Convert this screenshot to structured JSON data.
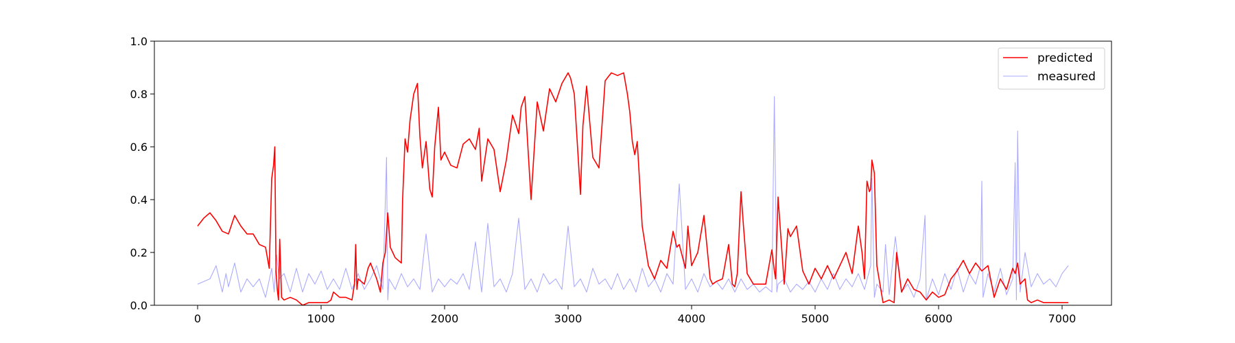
{
  "chart_data": {
    "type": "line",
    "title": "",
    "xlabel": "",
    "ylabel": "",
    "xlim": [
      -350,
      7400
    ],
    "ylim": [
      0.0,
      1.0
    ],
    "x_ticks": [
      0,
      1000,
      2000,
      3000,
      4000,
      5000,
      6000,
      7000
    ],
    "y_ticks": [
      0.0,
      0.2,
      0.4,
      0.6,
      0.8,
      1.0
    ],
    "x_tick_labels": [
      "0",
      "1000",
      "2000",
      "3000",
      "4000",
      "5000",
      "6000",
      "7000"
    ],
    "y_tick_labels": [
      "0.0",
      "0.2",
      "0.4",
      "0.6",
      "0.8",
      "1.0"
    ],
    "grid": false,
    "legend_position": "top-right",
    "series": [
      {
        "name": "predicted",
        "color": "#ff0000",
        "x": [
          0,
          50,
          100,
          150,
          200,
          250,
          300,
          350,
          400,
          450,
          500,
          550,
          580,
          600,
          615,
          625,
          635,
          645,
          655,
          665,
          680,
          700,
          750,
          800,
          850,
          900,
          950,
          1000,
          1050,
          1080,
          1100,
          1150,
          1200,
          1250,
          1270,
          1280,
          1290,
          1300,
          1350,
          1380,
          1400,
          1450,
          1480,
          1500,
          1520,
          1540,
          1560,
          1580,
          1600,
          1650,
          1660,
          1680,
          1700,
          1720,
          1750,
          1780,
          1800,
          1820,
          1850,
          1880,
          1900,
          1920,
          1950,
          1970,
          2000,
          2050,
          2100,
          2150,
          2200,
          2250,
          2280,
          2300,
          2350,
          2400,
          2450,
          2500,
          2550,
          2580,
          2600,
          2620,
          2650,
          2700,
          2750,
          2800,
          2850,
          2900,
          2950,
          3000,
          3020,
          3050,
          3100,
          3120,
          3150,
          3200,
          3250,
          3300,
          3350,
          3400,
          3450,
          3480,
          3500,
          3520,
          3540,
          3560,
          3600,
          3650,
          3700,
          3750,
          3800,
          3850,
          3880,
          3900,
          3950,
          3970,
          4000,
          4050,
          4100,
          4150,
          4170,
          4200,
          4250,
          4300,
          4330,
          4350,
          4370,
          4400,
          4420,
          4450,
          4500,
          4550,
          4600,
          4650,
          4670,
          4680,
          4700,
          4750,
          4780,
          4800,
          4850,
          4900,
          4950,
          5000,
          5050,
          5100,
          5150,
          5200,
          5250,
          5300,
          5350,
          5380,
          5400,
          5420,
          5440,
          5450,
          5460,
          5480,
          5500,
          5550,
          5600,
          5640,
          5660,
          5700,
          5750,
          5800,
          5850,
          5900,
          5950,
          6000,
          6050,
          6100,
          6150,
          6200,
          6250,
          6300,
          6350,
          6400,
          6450,
          6500,
          6550,
          6600,
          6620,
          6640,
          6660,
          6700,
          6720,
          6750,
          6800,
          6850,
          6900,
          6950,
          7000,
          7050
        ],
        "values": [
          0.3,
          0.33,
          0.35,
          0.32,
          0.28,
          0.27,
          0.34,
          0.3,
          0.27,
          0.27,
          0.23,
          0.22,
          0.14,
          0.48,
          0.53,
          0.6,
          0.13,
          0.06,
          0.02,
          0.25,
          0.03,
          0.02,
          0.03,
          0.02,
          0.0,
          0.01,
          0.01,
          0.01,
          0.01,
          0.02,
          0.05,
          0.03,
          0.03,
          0.02,
          0.08,
          0.23,
          0.06,
          0.1,
          0.08,
          0.14,
          0.16,
          0.1,
          0.05,
          0.16,
          0.2,
          0.35,
          0.22,
          0.2,
          0.18,
          0.16,
          0.4,
          0.63,
          0.58,
          0.7,
          0.8,
          0.84,
          0.64,
          0.52,
          0.62,
          0.44,
          0.41,
          0.6,
          0.75,
          0.55,
          0.58,
          0.53,
          0.52,
          0.61,
          0.63,
          0.59,
          0.67,
          0.47,
          0.63,
          0.59,
          0.43,
          0.55,
          0.72,
          0.68,
          0.65,
          0.75,
          0.79,
          0.4,
          0.77,
          0.66,
          0.82,
          0.77,
          0.84,
          0.88,
          0.86,
          0.8,
          0.42,
          0.68,
          0.83,
          0.56,
          0.52,
          0.85,
          0.88,
          0.87,
          0.88,
          0.8,
          0.73,
          0.62,
          0.57,
          0.62,
          0.3,
          0.15,
          0.1,
          0.17,
          0.14,
          0.28,
          0.22,
          0.23,
          0.14,
          0.3,
          0.15,
          0.2,
          0.34,
          0.1,
          0.08,
          0.09,
          0.1,
          0.23,
          0.08,
          0.07,
          0.12,
          0.43,
          0.3,
          0.12,
          0.08,
          0.08,
          0.08,
          0.21,
          0.13,
          0.1,
          0.41,
          0.08,
          0.29,
          0.26,
          0.3,
          0.13,
          0.08,
          0.14,
          0.1,
          0.15,
          0.1,
          0.15,
          0.2,
          0.12,
          0.3,
          0.2,
          0.1,
          0.47,
          0.43,
          0.44,
          0.55,
          0.5,
          0.15,
          0.01,
          0.02,
          0.01,
          0.2,
          0.05,
          0.1,
          0.06,
          0.05,
          0.02,
          0.05,
          0.03,
          0.04,
          0.1,
          0.13,
          0.17,
          0.12,
          0.16,
          0.13,
          0.15,
          0.03,
          0.1,
          0.06,
          0.14,
          0.12,
          0.16,
          0.08,
          0.1,
          0.02,
          0.01,
          0.02,
          0.01,
          0.01,
          0.01,
          0.01,
          0.01
        ]
      },
      {
        "name": "measured",
        "color": "#aaaaff",
        "x": [
          0,
          100,
          150,
          200,
          230,
          250,
          300,
          350,
          400,
          450,
          500,
          550,
          600,
          620,
          640,
          660,
          700,
          750,
          800,
          850,
          900,
          950,
          1000,
          1050,
          1100,
          1150,
          1200,
          1250,
          1300,
          1350,
          1400,
          1450,
          1500,
          1530,
          1540,
          1550,
          1600,
          1650,
          1700,
          1750,
          1800,
          1850,
          1900,
          1950,
          2000,
          2050,
          2100,
          2150,
          2200,
          2250,
          2300,
          2350,
          2400,
          2450,
          2500,
          2550,
          2600,
          2650,
          2700,
          2750,
          2800,
          2850,
          2900,
          2950,
          3000,
          3050,
          3100,
          3150,
          3200,
          3250,
          3300,
          3350,
          3400,
          3450,
          3500,
          3550,
          3600,
          3650,
          3700,
          3750,
          3800,
          3850,
          3900,
          3950,
          4000,
          4050,
          4100,
          4150,
          4200,
          4250,
          4300,
          4350,
          4400,
          4450,
          4500,
          4550,
          4600,
          4650,
          4670,
          4690,
          4700,
          4750,
          4800,
          4850,
          4900,
          4950,
          5000,
          5050,
          5100,
          5150,
          5200,
          5250,
          5300,
          5350,
          5400,
          5450,
          5460,
          5480,
          5500,
          5550,
          5570,
          5600,
          5650,
          5700,
          5750,
          5800,
          5850,
          5890,
          5900,
          5950,
          6000,
          6050,
          6100,
          6150,
          6200,
          6250,
          6300,
          6340,
          6350,
          6360,
          6400,
          6450,
          6500,
          6550,
          6600,
          6620,
          6630,
          6640,
          6660,
          6700,
          6750,
          6800,
          6850,
          6900,
          6950,
          7000,
          7050
        ],
        "values": [
          0.08,
          0.1,
          0.15,
          0.05,
          0.12,
          0.07,
          0.16,
          0.05,
          0.1,
          0.07,
          0.1,
          0.03,
          0.14,
          0.05,
          0.19,
          0.1,
          0.12,
          0.05,
          0.14,
          0.05,
          0.12,
          0.08,
          0.13,
          0.06,
          0.1,
          0.06,
          0.14,
          0.06,
          0.12,
          0.06,
          0.1,
          0.15,
          0.06,
          0.56,
          0.02,
          0.1,
          0.06,
          0.12,
          0.07,
          0.1,
          0.06,
          0.27,
          0.05,
          0.1,
          0.07,
          0.1,
          0.08,
          0.12,
          0.06,
          0.24,
          0.05,
          0.31,
          0.07,
          0.1,
          0.05,
          0.12,
          0.33,
          0.06,
          0.1,
          0.05,
          0.12,
          0.08,
          0.1,
          0.06,
          0.3,
          0.07,
          0.1,
          0.05,
          0.14,
          0.08,
          0.1,
          0.06,
          0.12,
          0.06,
          0.1,
          0.05,
          0.14,
          0.07,
          0.1,
          0.05,
          0.12,
          0.08,
          0.46,
          0.06,
          0.1,
          0.05,
          0.12,
          0.07,
          0.09,
          0.06,
          0.1,
          0.05,
          0.1,
          0.06,
          0.08,
          0.05,
          0.07,
          0.05,
          0.79,
          0.05,
          0.08,
          0.1,
          0.05,
          0.08,
          0.06,
          0.09,
          0.05,
          0.1,
          0.06,
          0.12,
          0.06,
          0.1,
          0.07,
          0.12,
          0.06,
          0.15,
          0.48,
          0.03,
          0.08,
          0.05,
          0.23,
          0.04,
          0.26,
          0.05,
          0.08,
          0.03,
          0.1,
          0.34,
          0.02,
          0.1,
          0.04,
          0.12,
          0.06,
          0.14,
          0.05,
          0.12,
          0.08,
          0.15,
          0.47,
          0.03,
          0.12,
          0.05,
          0.14,
          0.04,
          0.1,
          0.54,
          0.02,
          0.66,
          0.05,
          0.2,
          0.07,
          0.12,
          0.08,
          0.1,
          0.07,
          0.12,
          0.15
        ]
      }
    ]
  }
}
